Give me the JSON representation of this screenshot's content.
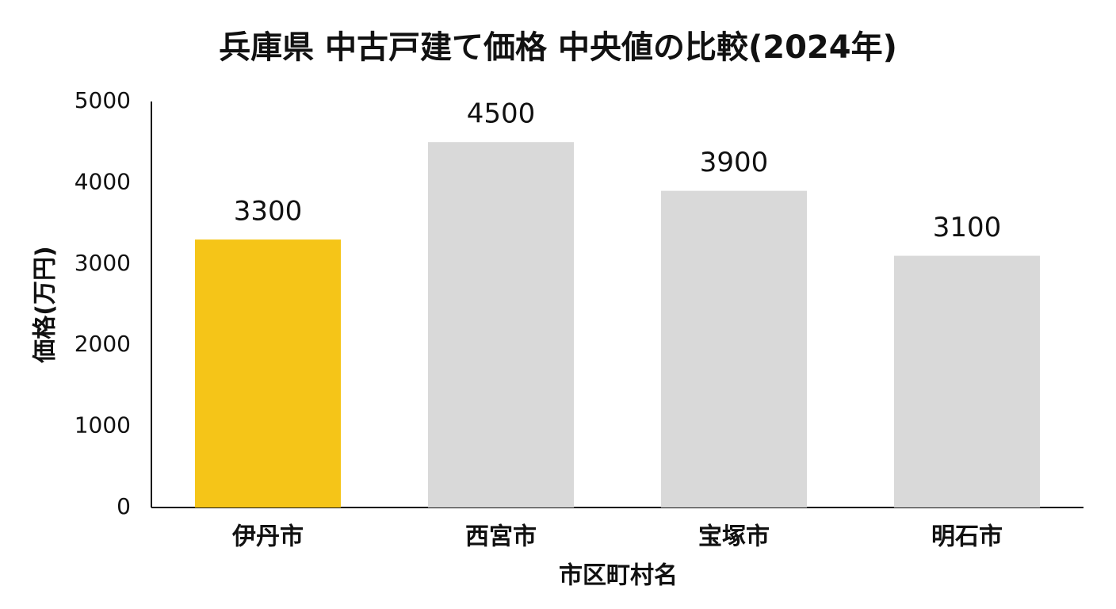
{
  "chart_data": {
    "type": "bar",
    "title": "兵庫県 中古戸建て価格 中央値の比較(2024年)",
    "x_label": "市区町村名",
    "y_label": "価格(万円)",
    "categories": [
      "伊丹市",
      "西宮市",
      "宝塚市",
      "明石市"
    ],
    "values": [
      3300,
      4500,
      3900,
      3100
    ],
    "colors": [
      "#f5c518",
      "#d9d9d9",
      "#d9d9d9",
      "#d9d9d9"
    ],
    "ylim": [
      0,
      5000
    ],
    "yticks": [
      0,
      1000,
      2000,
      3000,
      4000,
      5000
    ],
    "grid": false
  }
}
